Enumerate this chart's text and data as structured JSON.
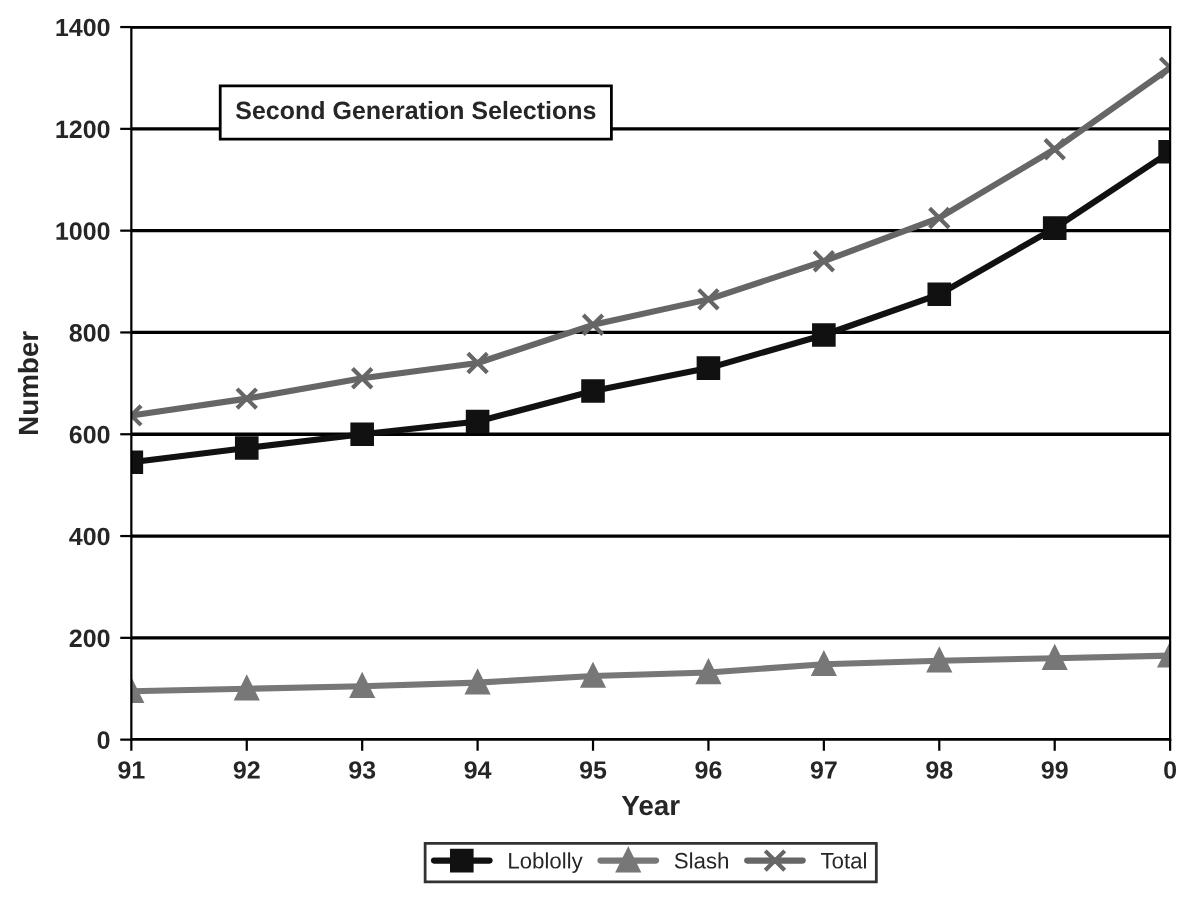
{
  "chart_data": {
    "type": "line",
    "xlabel": "Year",
    "ylabel": "Number",
    "categories": [
      "91",
      "92",
      "93",
      "94",
      "95",
      "96",
      "97",
      "98",
      "99",
      "0"
    ],
    "series": [
      {
        "name": "Loblolly",
        "color": "#111111",
        "marker": "square",
        "values": [
          545,
          573,
          600,
          625,
          685,
          730,
          795,
          875,
          1005,
          1155
        ]
      },
      {
        "name": "Slash",
        "color": "#777777",
        "marker": "triangle",
        "values": [
          95,
          100,
          105,
          112,
          125,
          132,
          148,
          155,
          160,
          165
        ]
      },
      {
        "name": "Total",
        "color": "#666666",
        "marker": "cross",
        "values": [
          637,
          670,
          710,
          740,
          815,
          865,
          940,
          1025,
          1160,
          1320
        ]
      }
    ],
    "ylim": [
      0,
      1400
    ],
    "yticks": [
      0,
      200,
      400,
      600,
      800,
      1000,
      1200,
      1400
    ],
    "grid": "y",
    "legend": "bottom",
    "line_style": "solid",
    "annotations": [
      "Second Generation Selections"
    ]
  }
}
